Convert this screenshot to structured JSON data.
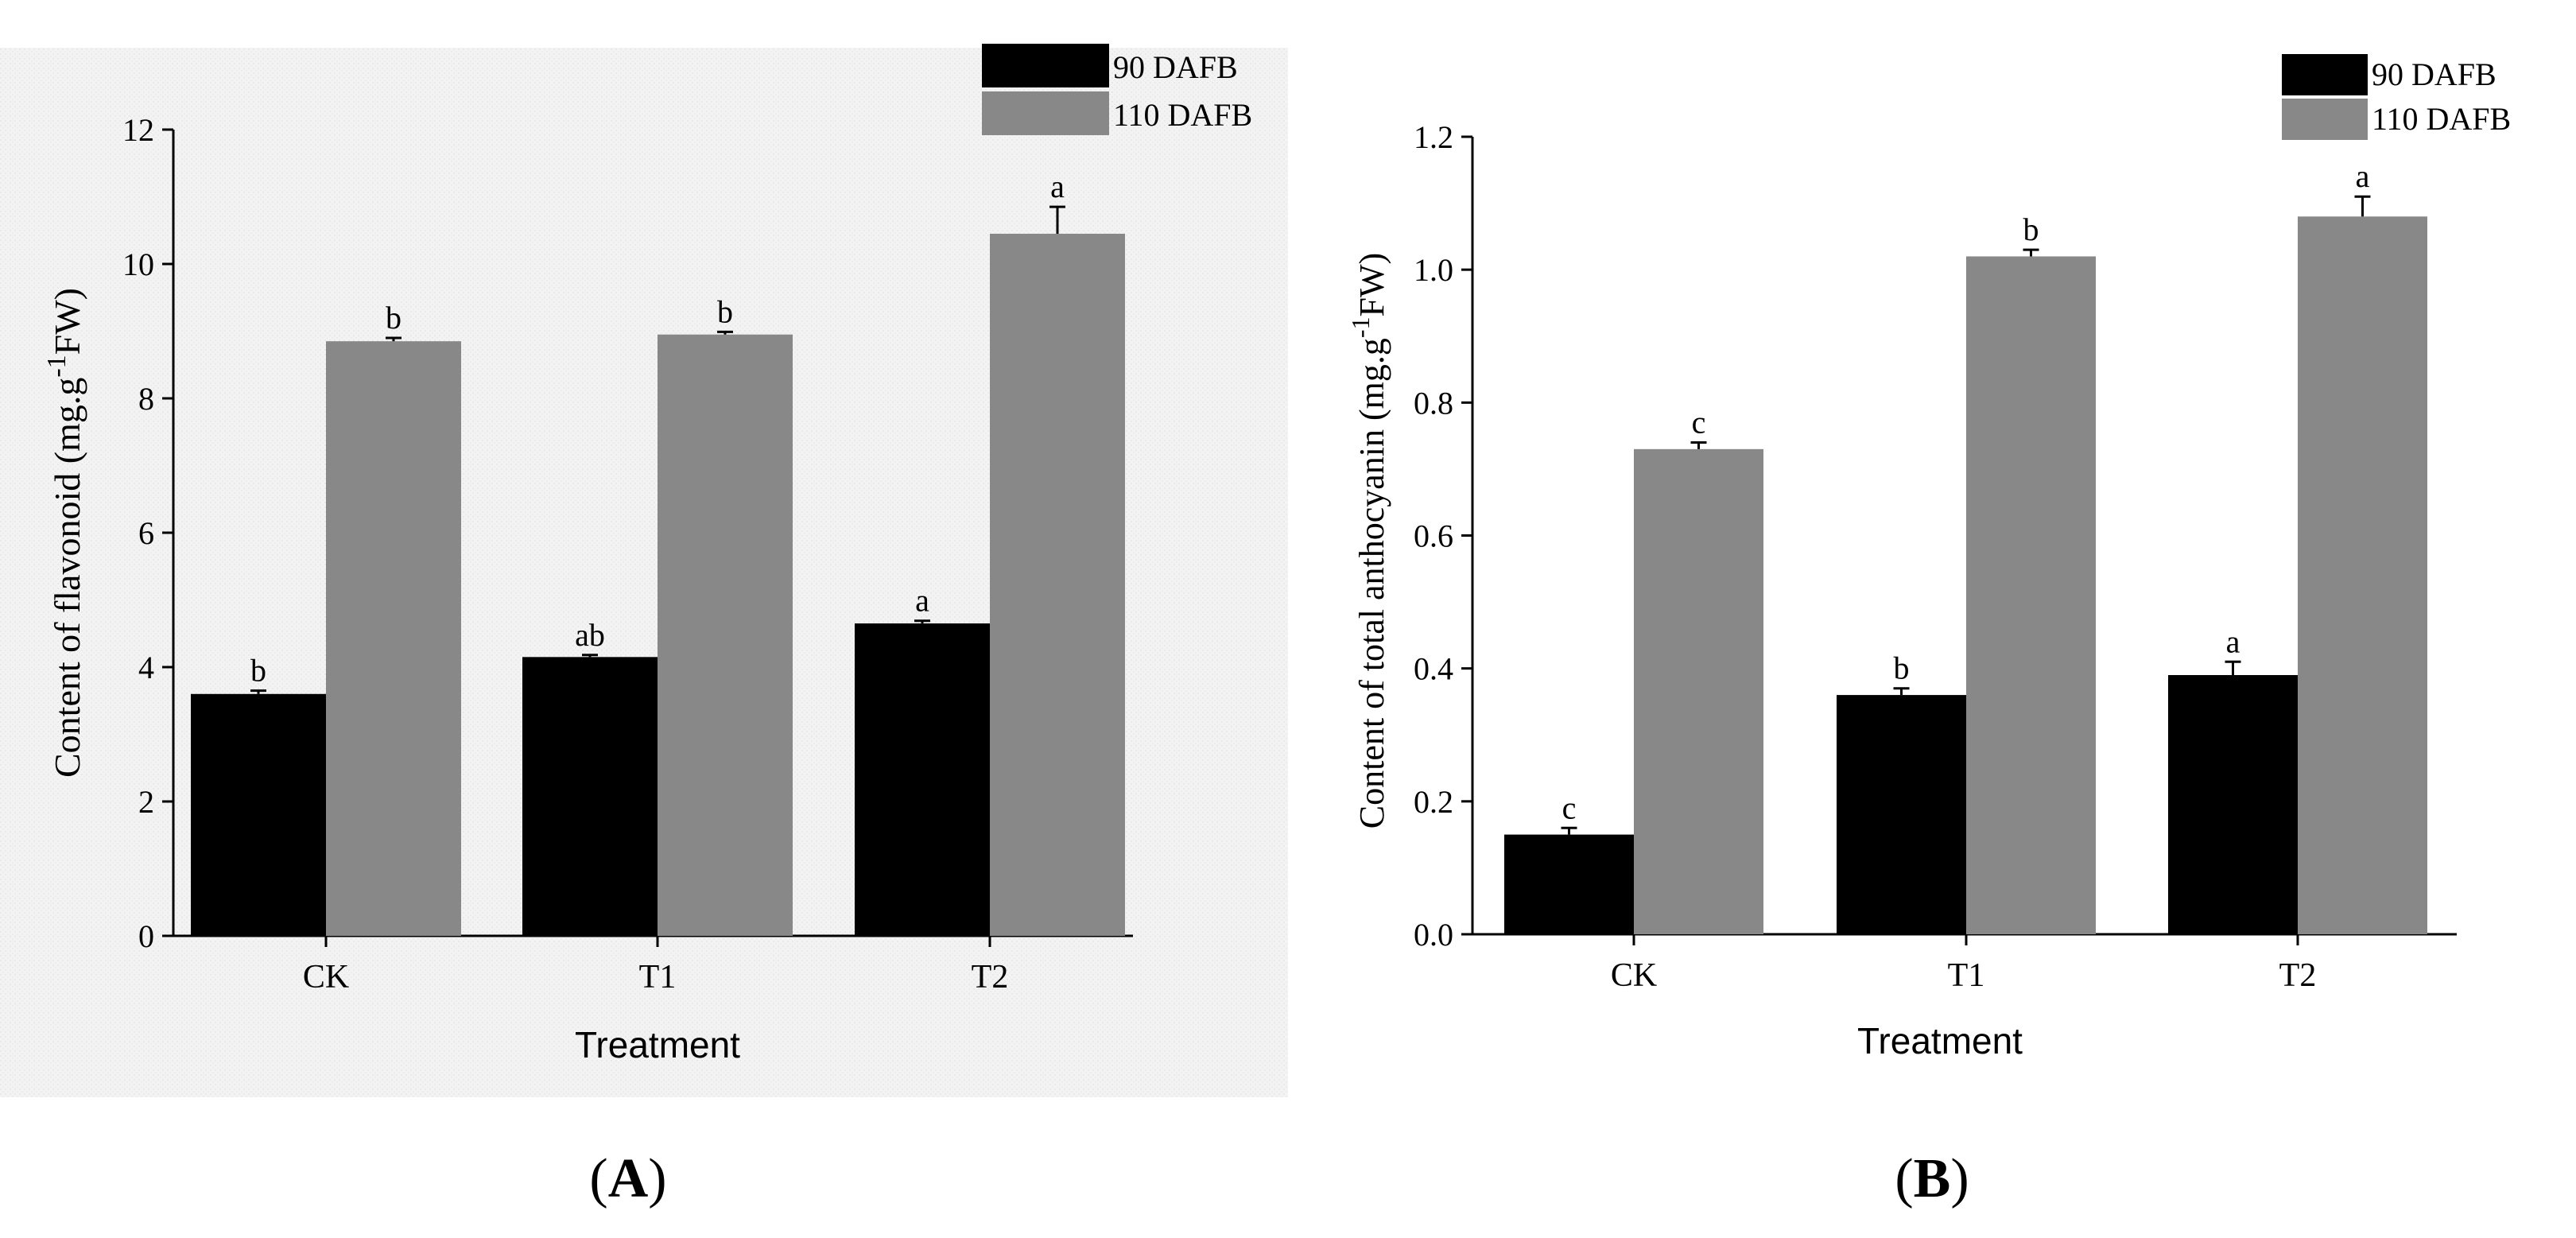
{
  "colors": {
    "series1": "#000000",
    "series2": "#888888",
    "panel_bg": "#f3f3f3",
    "axis": "#000000"
  },
  "chart_data": [
    {
      "type": "bar",
      "panel_label": "A",
      "xlabel": "Treatment",
      "ylabel": "Content of flavonoid (mg.g",
      "ylabel_sup": "-1",
      "ylabel_tail": "FW)",
      "categories": [
        "CK",
        "T1",
        "T2"
      ],
      "ylim": [
        0,
        12
      ],
      "yticks": [
        "0",
        "2",
        "4",
        "6",
        "8",
        "10",
        "12"
      ],
      "series": [
        {
          "name": "90 DAFB",
          "values": [
            3.6,
            4.15,
            4.65
          ],
          "errors": [
            0.05,
            0.03,
            0.04
          ],
          "letters": [
            "b",
            "ab",
            "a"
          ]
        },
        {
          "name": "110 DAFB",
          "values": [
            8.85,
            8.95,
            10.45
          ],
          "errors": [
            0.05,
            0.04,
            0.4
          ],
          "letters": [
            "b",
            "b",
            "a"
          ]
        }
      ]
    },
    {
      "type": "bar",
      "panel_label": "B",
      "xlabel": "Treatment",
      "ylabel": "Content of total anthocyanin (mg.g",
      "ylabel_sup": "-1",
      "ylabel_tail": "FW)",
      "categories": [
        "CK",
        "T1",
        "T2"
      ],
      "ylim": [
        0,
        1.2
      ],
      "yticks": [
        "0.0",
        "0.2",
        "0.4",
        "0.6",
        "0.8",
        "1.0",
        "1.2"
      ],
      "series": [
        {
          "name": "90 DAFB",
          "values": [
            0.15,
            0.36,
            0.39
          ],
          "errors": [
            0.01,
            0.01,
            0.02
          ],
          "letters": [
            "c",
            "b",
            "a"
          ]
        },
        {
          "name": "110 DAFB",
          "values": [
            0.73,
            1.02,
            1.08
          ],
          "errors": [
            0.01,
            0.01,
            0.03
          ],
          "letters": [
            "c",
            "b",
            "a"
          ]
        }
      ]
    }
  ]
}
